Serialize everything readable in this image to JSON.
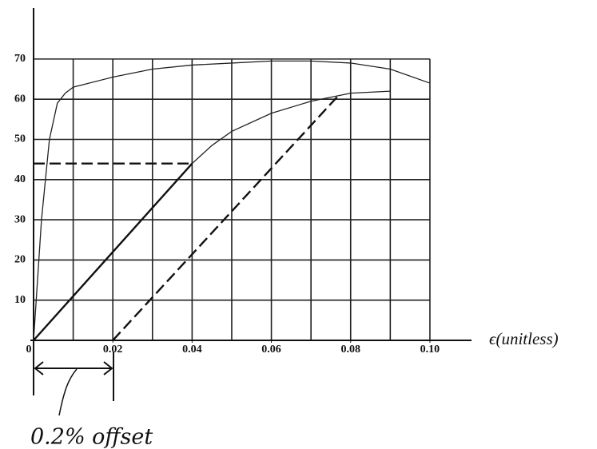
{
  "chart_data": {
    "type": "line",
    "x_label": "ϵ(unitless)",
    "annotation": "0.2% offset",
    "xlim": [
      0,
      0.1105
    ],
    "ylim": [
      0,
      82.7
    ],
    "xticks": [
      0,
      0.02,
      0.04,
      0.06,
      0.08,
      {
        "value": 0.1,
        "label": "0.10"
      }
    ],
    "x_gridlines": [
      0.01,
      0.02,
      0.03,
      0.04,
      0.05,
      0.06,
      0.07,
      0.08,
      0.09,
      0.1
    ],
    "yticks": [
      10,
      20,
      30,
      40,
      50,
      60,
      70
    ],
    "grid": true,
    "series": [
      {
        "color": "#222",
        "width": 1.3,
        "dashed": false,
        "x": [
          0,
          0.002,
          0.004,
          0.006,
          0.008,
          0.01,
          0.02,
          0.03,
          0.04,
          0.05,
          0.06,
          0.07,
          0.08,
          0.09,
          0.1
        ],
        "values": [
          0,
          30,
          50,
          59,
          61.5,
          63,
          65.5,
          67.5,
          68.5,
          69,
          69.5,
          69.5,
          69,
          67.5,
          64
        ]
      },
      {
        "color": "#111",
        "width": 2.4,
        "dashed": false,
        "x": [
          0,
          0.04
        ],
        "values": [
          0,
          44
        ]
      },
      {
        "color": "#222",
        "width": 1.3,
        "dashed": false,
        "x": [
          0.04,
          0.045,
          0.05,
          0.06,
          0.07,
          0.08,
          0.09
        ],
        "values": [
          44,
          48.5,
          52,
          56.5,
          59.5,
          61.5,
          62
        ]
      },
      {
        "color": "#111",
        "width": 2.4,
        "dashed": true,
        "x": [
          0.02,
          0.077
        ],
        "values": [
          0,
          61
        ]
      },
      {
        "color": "#111",
        "width": 2.4,
        "dashed": true,
        "x": [
          0,
          0.04
        ],
        "values": [
          44,
          44
        ]
      }
    ]
  }
}
